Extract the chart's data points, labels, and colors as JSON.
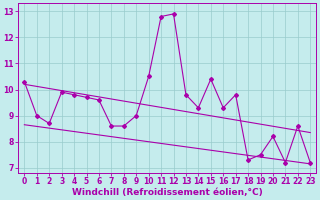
{
  "xlabel": "Windchill (Refroidissement éolien,°C)",
  "background_color": "#c5eced",
  "line_color": "#aa00aa",
  "xlim": [
    -0.5,
    23.5
  ],
  "ylim": [
    6.8,
    13.3
  ],
  "yticks": [
    7,
    8,
    9,
    10,
    11,
    12,
    13
  ],
  "xticks": [
    0,
    1,
    2,
    3,
    4,
    5,
    6,
    7,
    8,
    9,
    10,
    11,
    12,
    13,
    14,
    15,
    16,
    17,
    18,
    19,
    20,
    21,
    22,
    23
  ],
  "line1_x": [
    0,
    1,
    2,
    3,
    4,
    5,
    6,
    7,
    8,
    9,
    10,
    11,
    12,
    13,
    14,
    15,
    16,
    17,
    18,
    19,
    20,
    21,
    22,
    23
  ],
  "line1_y": [
    10.3,
    9.0,
    8.7,
    9.9,
    9.8,
    9.7,
    9.6,
    8.6,
    8.6,
    9.0,
    10.5,
    12.8,
    12.9,
    9.8,
    9.3,
    10.4,
    9.3,
    9.8,
    7.3,
    7.5,
    8.2,
    7.2,
    8.6,
    7.2
  ],
  "trend1_x": [
    0,
    23
  ],
  "trend1_y": [
    10.2,
    8.35
  ],
  "trend2_x": [
    0,
    23
  ],
  "trend2_y": [
    8.65,
    7.15
  ],
  "grid_color": "#99cccc",
  "tick_fontsize": 5.5,
  "xlabel_fontsize": 6.5,
  "marker_size": 2.0,
  "line_width": 0.8
}
